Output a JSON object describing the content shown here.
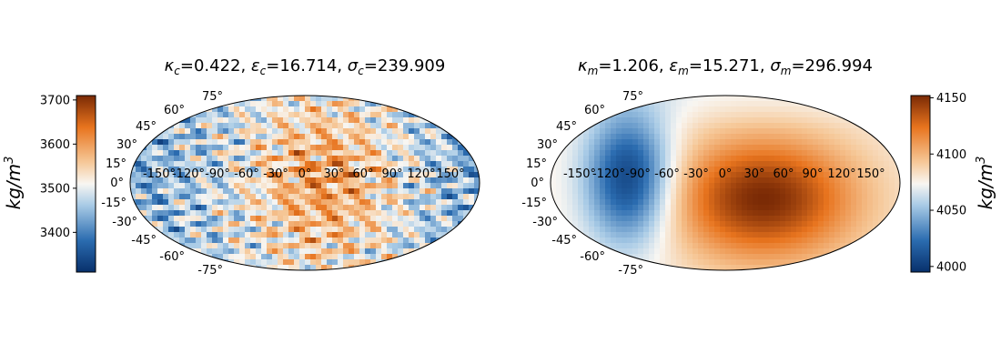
{
  "chart_data": [
    {
      "type": "heatmap",
      "projection": "mollweide",
      "title": {
        "k": "κ",
        "ks": "c",
        "kv": "=0.422, ",
        "e": "ε",
        "es": "c",
        "ev": "=16.714, ",
        "s": "σ",
        "ss": "c",
        "sv": "=239.909"
      },
      "lon_ticks": [
        "-150°",
        "-120°",
        "-90°",
        "-60°",
        "-30°",
        "0°",
        "30°",
        "60°",
        "90°",
        "120°",
        "150°"
      ],
      "lat_ticks": [
        "75°",
        "60°",
        "45°",
        "30°",
        "15°",
        "0°",
        "-15°",
        "-30°",
        "-45°",
        "-60°",
        "-75°"
      ],
      "colorbar": {
        "side": "left",
        "range": [
          3310,
          3710
        ],
        "ticks": [
          "3400",
          "3500",
          "3600",
          "3700"
        ],
        "tick_values": [
          3400,
          3500,
          3600,
          3700
        ],
        "label": "kg/m",
        "label_sup": "3",
        "colormap": "blue-white-orange"
      },
      "pattern": "small-scale mottled; orange concentrated in center 0°–60°, blue toward the edges"
    },
    {
      "type": "heatmap",
      "projection": "mollweide",
      "title": {
        "k": "κ",
        "ks": "m",
        "kv": "=1.206, ",
        "e": "ε",
        "es": "m",
        "ev": "=15.271, ",
        "s": "σ",
        "ss": "m",
        "sv": "=296.994"
      },
      "lon_ticks": [
        "-150°",
        "-120°",
        "-90°",
        "-60°",
        "-30°",
        "0°",
        "30°",
        "60°",
        "90°",
        "120°",
        "150°"
      ],
      "lat_ticks": [
        "75°",
        "60°",
        "45°",
        "30°",
        "15°",
        "0°",
        "-15°",
        "-30°",
        "-45°",
        "-60°",
        "-75°"
      ],
      "colorbar": {
        "side": "right",
        "range": [
          3995,
          4152
        ],
        "ticks": [
          "4000",
          "4050",
          "4100",
          "4150"
        ],
        "tick_values": [
          4000,
          4050,
          4100,
          4150
        ],
        "label": "kg/m",
        "label_sup": "3",
        "colormap": "blue-white-orange"
      },
      "pattern": "large-scale: deep blue lobe near -90°, broad orange region centered near 30°"
    }
  ]
}
